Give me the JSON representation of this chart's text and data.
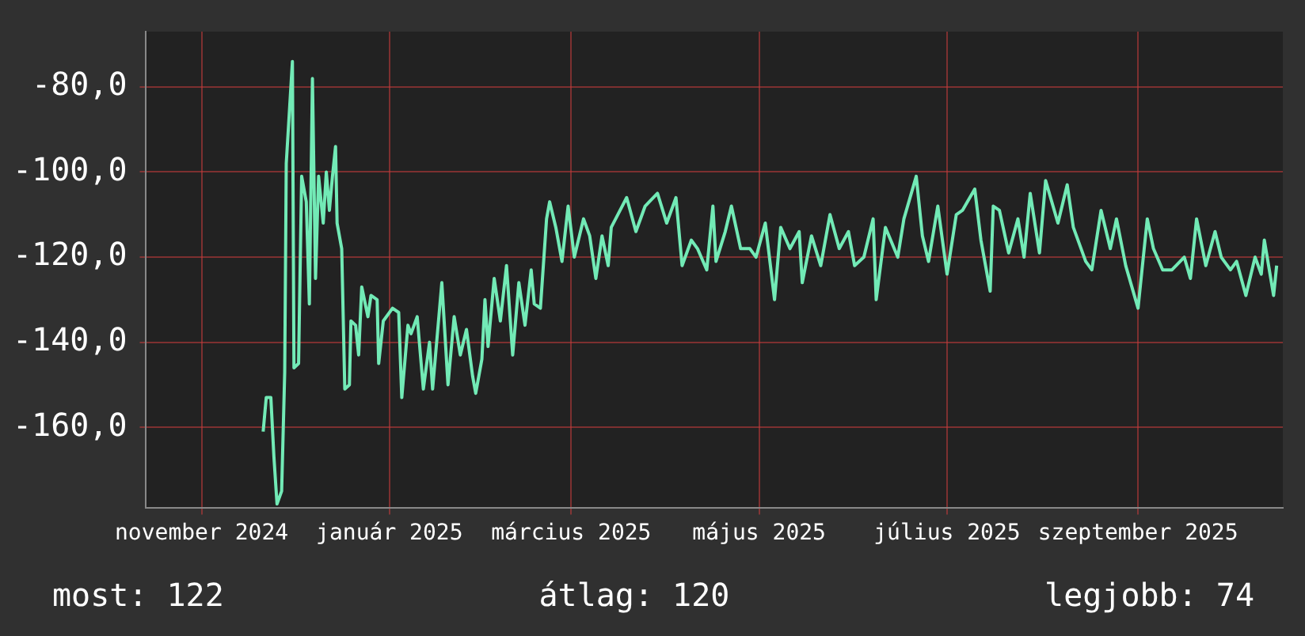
{
  "chart_data": {
    "type": "line",
    "color": "#72eab6",
    "grid": true,
    "xlim": [
      "2024-10-14",
      "2025-10-18"
    ],
    "xticks": [
      {
        "value": "2024-11-01",
        "label": "november 2024"
      },
      {
        "value": "2025-01-01",
        "label": "január 2025"
      },
      {
        "value": "2025-03-01",
        "label": "március 2025"
      },
      {
        "value": "2025-05-01",
        "label": "május 2025"
      },
      {
        "value": "2025-07-01",
        "label": "július 2025"
      },
      {
        "value": "2025-09-01",
        "label": "szeptember 2025"
      }
    ],
    "ylim": [
      -179,
      -67
    ],
    "yticks": [
      {
        "value": -160,
        "label": "-160,0"
      },
      {
        "value": -140,
        "label": "-140,0"
      },
      {
        "value": -120,
        "label": "-120,0"
      },
      {
        "value": -100,
        "label": "-100,0"
      },
      {
        "value": -80,
        "label": "-80,0"
      }
    ],
    "x": [
      "2024-11-21",
      "2024-11-22",
      "2024-11-23T12:00",
      "2024-11-24T12:00",
      "2024-11-25T12:00",
      "2024-11-27",
      "2024-11-28",
      "2024-11-28T12:00",
      "2024-11-30T12:00",
      "2024-12-01",
      "2024-12-02T12:00",
      "2024-12-03T12:00",
      "2024-12-05",
      "2024-12-06",
      "2024-12-07",
      "2024-12-08",
      "2024-12-09",
      "2024-12-10T12:00",
      "2024-12-11T12:00",
      "2024-12-12T12:00",
      "2024-12-13T12:00",
      "2024-12-14T12:00",
      "2024-12-15",
      "2024-12-16T12:00",
      "2024-12-17T12:00",
      "2024-12-19",
      "2024-12-19T12:00",
      "2024-12-21",
      "2024-12-22",
      "2024-12-23",
      "2024-12-25",
      "2024-12-26",
      "2024-12-28",
      "2024-12-28T12:00",
      "2024-12-30",
      "2025-01-02",
      "2025-01-04",
      "2025-01-05",
      "2025-01-07",
      "2025-01-08",
      "2025-01-10",
      "2025-01-12",
      "2025-01-14",
      "2025-01-15",
      "2025-01-18",
      "2025-01-20",
      "2025-01-22",
      "2025-01-24",
      "2025-01-26",
      "2025-01-28",
      "2025-01-29",
      "2025-01-31",
      "2025-02-01",
      "2025-02-02",
      "2025-02-04",
      "2025-02-06",
      "2025-02-08",
      "2025-02-10",
      "2025-02-12",
      "2025-02-14",
      "2025-02-16",
      "2025-02-17",
      "2025-02-19",
      "2025-02-21",
      "2025-02-22",
      "2025-02-24",
      "2025-02-26",
      "2025-02-28",
      "2025-03-02",
      "2025-03-05",
      "2025-03-07",
      "2025-03-09",
      "2025-03-11",
      "2025-03-13",
      "2025-03-14",
      "2025-03-19",
      "2025-03-22",
      "2025-03-25",
      "2025-03-29",
      "2025-04-01",
      "2025-04-04",
      "2025-04-06",
      "2025-04-09",
      "2025-04-11",
      "2025-04-14",
      "2025-04-16",
      "2025-04-17",
      "2025-04-20",
      "2025-04-22",
      "2025-04-25",
      "2025-04-28",
      "2025-04-30",
      "2025-05-03",
      "2025-05-06",
      "2025-05-08",
      "2025-05-11",
      "2025-05-14",
      "2025-05-15",
      "2025-05-18",
      "2025-05-21",
      "2025-05-24",
      "2025-05-27",
      "2025-05-30",
      "2025-06-01",
      "2025-06-04",
      "2025-06-07",
      "2025-06-08",
      "2025-06-11",
      "2025-06-15",
      "2025-06-17",
      "2025-06-21",
      "2025-06-23",
      "2025-06-25",
      "2025-06-28",
      "2025-07-01",
      "2025-07-04",
      "2025-07-06",
      "2025-07-10",
      "2025-07-12",
      "2025-07-15",
      "2025-07-16",
      "2025-07-18",
      "2025-07-21",
      "2025-07-24",
      "2025-07-26",
      "2025-07-28",
      "2025-07-31",
      "2025-08-02",
      "2025-08-06",
      "2025-08-08",
      "2025-08-09",
      "2025-08-11",
      "2025-08-15",
      "2025-08-17",
      "2025-08-20",
      "2025-08-23",
      "2025-08-25",
      "2025-08-28",
      "2025-09-01",
      "2025-09-04",
      "2025-09-06",
      "2025-09-09",
      "2025-09-12",
      "2025-09-16",
      "2025-09-18",
      "2025-09-20",
      "2025-09-23",
      "2025-09-26",
      "2025-09-28",
      "2025-10-01",
      "2025-10-03",
      "2025-10-06",
      "2025-10-09",
      "2025-10-11",
      "2025-10-12",
      "2025-10-15",
      "2025-10-16"
    ],
    "values": [
      -161,
      -153,
      -153,
      -167,
      -178,
      -175,
      -147,
      -98,
      -74,
      -146,
      -145,
      -101,
      -107,
      -131,
      -78,
      -125,
      -101,
      -112,
      -100,
      -109,
      -101,
      -94,
      -112,
      -118,
      -151,
      -150,
      -135,
      -136,
      -143,
      -127,
      -134,
      -129,
      -130,
      -145,
      -135,
      -132,
      -133,
      -153,
      -136,
      -138,
      -134,
      -151,
      -140,
      -151,
      -126,
      -150,
      -134,
      -143,
      -137,
      -148,
      -152,
      -144,
      -130,
      -141,
      -125,
      -135,
      -122,
      -143,
      -126,
      -136,
      -123,
      -131,
      -132,
      -111,
      -107,
      -113,
      -121,
      -108,
      -120,
      -111,
      -115,
      -125,
      -115,
      -122,
      -113,
      -106,
      -114,
      -108,
      -105,
      -112,
      -106,
      -122,
      -116,
      -118,
      -123,
      -108,
      -121,
      -114,
      -108,
      -118,
      -118,
      -120,
      -112,
      -130,
      -113,
      -118,
      -114,
      -126,
      -115,
      -122,
      -110,
      -118,
      -114,
      -122,
      -120,
      -111,
      -130,
      -113,
      -120,
      -111,
      -101,
      -115,
      -121,
      -108,
      -124,
      -110,
      -109,
      -104,
      -116,
      -128,
      -108,
      -109,
      -119,
      -111,
      -120,
      -105,
      -119,
      -102,
      -112,
      -106,
      -103,
      -113,
      -121,
      -123,
      -109,
      -118,
      -111,
      -122,
      -132,
      -111,
      -118,
      -123,
      -123,
      -120,
      -125,
      -111,
      -122,
      -114,
      -120,
      -123,
      -121,
      -129,
      -120,
      -124,
      -116,
      -129,
      -122
    ],
    "annotations": [
      "most: 122",
      "átlag: 120",
      "legjobb: 74"
    ]
  }
}
